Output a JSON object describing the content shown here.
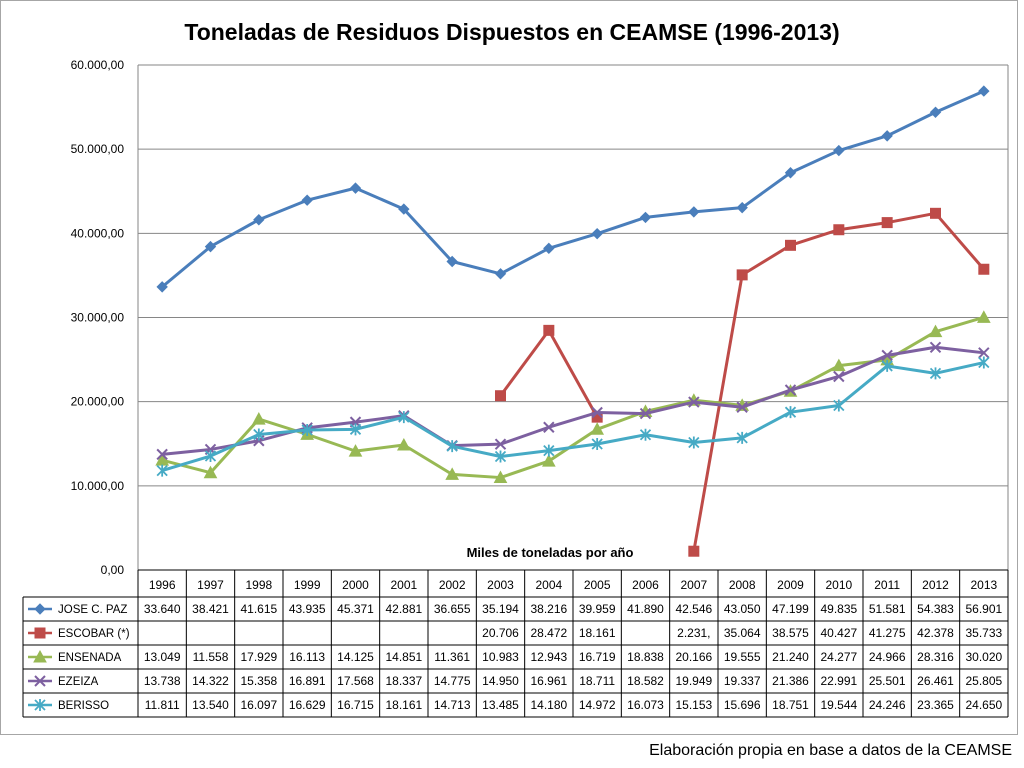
{
  "chart_data": {
    "type": "line",
    "title": "Toneladas de Residuos Dispuestos en CEAMSE (1996-2013)",
    "xlabel": "Miles de toneladas por año",
    "ylabel": "",
    "ylim": [
      0,
      60000
    ],
    "yticks": [
      0,
      10000,
      20000,
      30000,
      40000,
      50000,
      60000
    ],
    "ytick_labels": [
      "0,00",
      "10.000,00",
      "20.000,00",
      "30.000,00",
      "40.000,00",
      "50.000,00",
      "60.000,00"
    ],
    "grid": true,
    "legend": "data-table",
    "categories": [
      "1996",
      "1997",
      "1998",
      "1999",
      "2000",
      "2001",
      "2002",
      "2003",
      "2004",
      "2005",
      "2006",
      "2007",
      "2008",
      "2009",
      "2010",
      "2011",
      "2012",
      "2013"
    ],
    "series": [
      {
        "name": "JOSE C. PAZ",
        "color": "#4a7ebb",
        "marker": "diamond",
        "values": [
          33640,
          38421,
          41615,
          43935,
          45371,
          42881,
          36655,
          35194,
          38216,
          39959,
          41890,
          42546,
          43050,
          47199,
          49835,
          51581,
          54383,
          56901
        ],
        "labels": [
          "33.640",
          "38.421",
          "41.615",
          "43.935",
          "45.371",
          "42.881",
          "36.655",
          "35.194",
          "38.216",
          "39.959",
          "41.890",
          "42.546",
          "43.050",
          "47.199",
          "49.835",
          "51.581",
          "54.383",
          "56.901"
        ]
      },
      {
        "name": "ESCOBAR  (*)",
        "color": "#be4b48",
        "marker": "square",
        "values": [
          null,
          null,
          null,
          null,
          null,
          null,
          null,
          20706,
          28472,
          18161,
          null,
          2231,
          35064,
          38575,
          40427,
          41275,
          42378,
          35733
        ],
        "labels": [
          "",
          "",
          "",
          "",
          "",
          "",
          "",
          "20.706",
          "28.472",
          "18.161",
          "",
          "2.231,",
          "35.064",
          "38.575",
          "40.427",
          "41.275",
          "42.378",
          "35.733"
        ]
      },
      {
        "name": "ENSENADA",
        "color": "#98b954",
        "marker": "triangle",
        "values": [
          13049,
          11558,
          17929,
          16113,
          14125,
          14851,
          11361,
          10983,
          12943,
          16719,
          18838,
          20166,
          19555,
          21240,
          24277,
          24966,
          28316,
          30020
        ],
        "labels": [
          "13.049",
          "11.558",
          "17.929",
          "16.113",
          "14.125",
          "14.851",
          "11.361",
          "10.983",
          "12.943",
          "16.719",
          "18.838",
          "20.166",
          "19.555",
          "21.240",
          "24.277",
          "24.966",
          "28.316",
          "30.020"
        ]
      },
      {
        "name": "EZEIZA",
        "color": "#7d60a0",
        "marker": "x",
        "values": [
          13738,
          14322,
          15358,
          16891,
          17568,
          18337,
          14775,
          14950,
          16961,
          18711,
          18582,
          19949,
          19337,
          21386,
          22991,
          25501,
          26461,
          25805
        ],
        "labels": [
          "13.738",
          "14.322",
          "15.358",
          "16.891",
          "17.568",
          "18.337",
          "14.775",
          "14.950",
          "16.961",
          "18.711",
          "18.582",
          "19.949",
          "19.337",
          "21.386",
          "22.991",
          "25.501",
          "26.461",
          "25.805"
        ]
      },
      {
        "name": "BERISSO",
        "color": "#46aac5",
        "marker": "star",
        "values": [
          11811,
          13540,
          16097,
          16629,
          16715,
          18161,
          14713,
          13485,
          14180,
          14972,
          16073,
          15153,
          15696,
          18751,
          19544,
          24246,
          23365,
          24650
        ],
        "labels": [
          "11.811",
          "13.540",
          "16.097",
          "16.629",
          "16.715",
          "18.161",
          "14.713",
          "13.485",
          "14.180",
          "14.972",
          "16.073",
          "15.153",
          "15.696",
          "18.751",
          "19.544",
          "24.246",
          "23.365",
          "24.650"
        ]
      }
    ]
  },
  "footer": {
    "source": "Elaboración propia en base a datos de la CEAMSE"
  }
}
